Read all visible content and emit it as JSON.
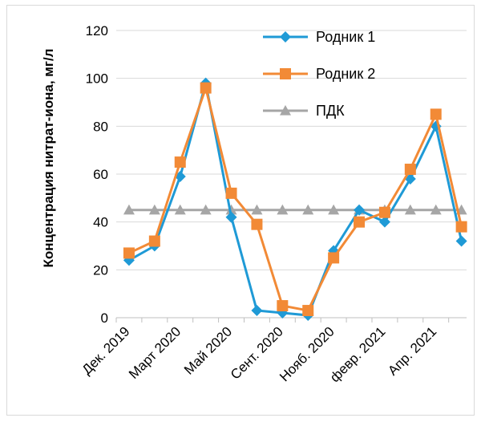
{
  "chart_data": {
    "type": "line",
    "ylabel": "Концентрация нитрат-иона, мг/л",
    "ylim": [
      0,
      120
    ],
    "yticks": [
      0,
      20,
      40,
      60,
      80,
      100,
      120
    ],
    "grid": "horizontal",
    "legend_position": "top-right",
    "x_tick_labels": [
      {
        "index": 0,
        "label": "Дек. 2019"
      },
      {
        "index": 2,
        "label": "Март 2020"
      },
      {
        "index": 4,
        "label": "Май 2020"
      },
      {
        "index": 6,
        "label": "Сент. 2020"
      },
      {
        "index": 8,
        "label": "Нояб. 2020"
      },
      {
        "index": 10,
        "label": "февр. 2021"
      },
      {
        "index": 12,
        "label": "Апр. 2021"
      }
    ],
    "series": [
      {
        "name": "Родник 1",
        "color": "#1f9ad6",
        "marker": "diamond",
        "values": [
          24,
          30,
          59,
          98,
          42,
          3,
          2,
          1,
          28,
          45,
          40,
          58,
          80,
          32
        ]
      },
      {
        "name": "Родник 2",
        "color": "#f28a36",
        "marker": "square",
        "values": [
          27,
          32,
          65,
          96,
          52,
          39,
          5,
          3,
          25,
          40,
          44,
          62,
          85,
          38
        ]
      },
      {
        "name": "ПДК",
        "color": "#a6a6a6",
        "marker": "triangle",
        "values": [
          45,
          45,
          45,
          45,
          45,
          45,
          45,
          45,
          45,
          45,
          45,
          45,
          45,
          45
        ]
      }
    ]
  }
}
